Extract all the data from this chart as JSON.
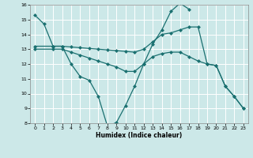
{
  "xlabel": "Humidex (Indice chaleur)",
  "xlim": [
    -0.5,
    23.5
  ],
  "ylim": [
    8,
    16
  ],
  "xticks": [
    0,
    1,
    2,
    3,
    4,
    5,
    6,
    7,
    8,
    9,
    10,
    11,
    12,
    13,
    14,
    15,
    16,
    17,
    18,
    19,
    20,
    21,
    22,
    23
  ],
  "yticks": [
    8,
    9,
    10,
    11,
    12,
    13,
    14,
    15,
    16
  ],
  "background_color": "#cce8e8",
  "grid_color": "#ffffff",
  "line_color": "#1a7070",
  "line1_x": [
    0,
    1,
    2,
    3,
    4,
    5,
    6,
    7,
    8,
    9,
    10,
    11,
    12,
    13,
    14,
    15,
    16,
    17
  ],
  "line1_y": [
    15.3,
    14.7,
    13.2,
    13.2,
    12.0,
    11.15,
    10.9,
    9.8,
    7.8,
    8.05,
    9.2,
    10.5,
    12.0,
    13.35,
    14.3,
    15.55,
    16.1,
    15.7
  ],
  "line2_x": [
    0,
    2,
    3,
    4,
    5,
    6,
    7,
    8,
    9,
    10,
    11,
    12,
    13,
    14,
    15,
    16,
    17,
    18,
    19,
    20,
    21,
    22,
    23
  ],
  "line2_y": [
    13.2,
    13.2,
    13.2,
    13.15,
    13.1,
    13.05,
    13.0,
    12.95,
    12.9,
    12.85,
    12.8,
    13.0,
    13.5,
    14.0,
    14.1,
    14.3,
    14.5,
    14.5,
    12.0,
    11.9,
    10.5,
    9.8,
    9.0
  ],
  "line3_x": [
    0,
    2,
    3,
    4,
    5,
    6,
    7,
    8,
    9,
    10,
    11,
    12,
    13,
    14,
    15,
    16,
    17,
    18,
    19,
    20,
    21,
    22,
    23
  ],
  "line3_y": [
    13.0,
    13.0,
    13.0,
    12.8,
    12.6,
    12.4,
    12.2,
    12.0,
    11.8,
    11.5,
    11.5,
    12.0,
    12.5,
    12.7,
    12.8,
    12.8,
    12.5,
    12.2,
    12.0,
    11.9,
    10.5,
    9.8,
    9.0
  ]
}
